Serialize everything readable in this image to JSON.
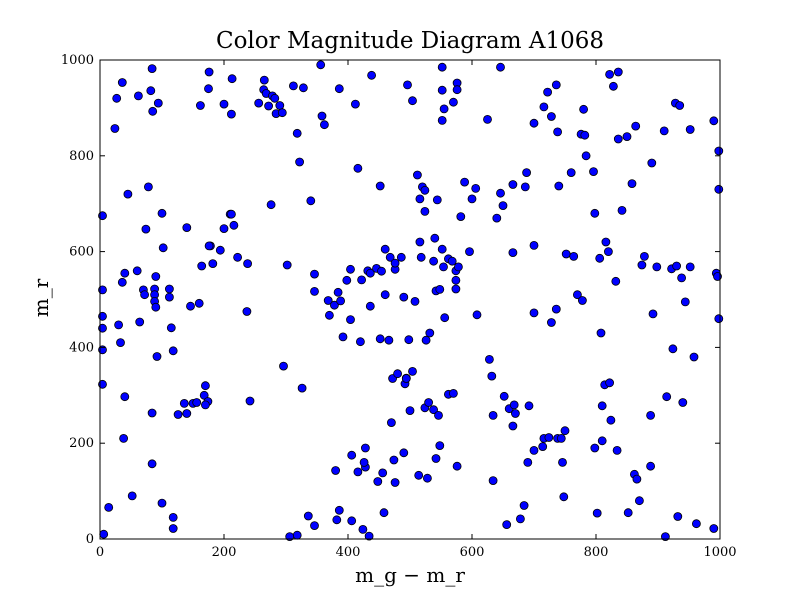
{
  "chart_data": {
    "type": "scatter",
    "title": "Color Magnitude Diagram A1068",
    "xlabel": "m_g − m_r",
    "ylabel": "m_r",
    "xlim": [
      0,
      1000
    ],
    "ylim": [
      0,
      1000
    ],
    "xticks": [
      "0",
      "200",
      "400",
      "600",
      "800",
      "1000"
    ],
    "yticks": [
      "0",
      "200",
      "400",
      "600",
      "800",
      "1000"
    ],
    "marker_color": "#0000ff",
    "grid": false,
    "points": [
      [
        27,
        920
      ],
      [
        36,
        953
      ],
      [
        62,
        925
      ],
      [
        84,
        982
      ],
      [
        82,
        936
      ],
      [
        94,
        910
      ],
      [
        85,
        893
      ],
      [
        24,
        857
      ],
      [
        78,
        735
      ],
      [
        45,
        720
      ],
      [
        4,
        675
      ],
      [
        100,
        680
      ],
      [
        74,
        647
      ],
      [
        102,
        608
      ],
      [
        60,
        560
      ],
      [
        40,
        555
      ],
      [
        36,
        536
      ],
      [
        70,
        520
      ],
      [
        72,
        510
      ],
      [
        90,
        548
      ],
      [
        88,
        522
      ],
      [
        88,
        510
      ],
      [
        88,
        496
      ],
      [
        112,
        522
      ],
      [
        112,
        505
      ],
      [
        90,
        484
      ],
      [
        64,
        453
      ],
      [
        4,
        520
      ],
      [
        4,
        465
      ],
      [
        4,
        440
      ],
      [
        4,
        395
      ],
      [
        30,
        447
      ],
      [
        33,
        410
      ],
      [
        92,
        381
      ],
      [
        118,
        393
      ],
      [
        115,
        441
      ],
      [
        4,
        323
      ],
      [
        40,
        297
      ],
      [
        38,
        210
      ],
      [
        84,
        263
      ],
      [
        84,
        157
      ],
      [
        52,
        90
      ],
      [
        100,
        75
      ],
      [
        118,
        45
      ],
      [
        118,
        22
      ],
      [
        14,
        66
      ],
      [
        6,
        10
      ],
      [
        176,
        975
      ],
      [
        175,
        940
      ],
      [
        213,
        961
      ],
      [
        200,
        908
      ],
      [
        212,
        887
      ],
      [
        256,
        910
      ],
      [
        264,
        938
      ],
      [
        265,
        958
      ],
      [
        268,
        930
      ],
      [
        272,
        904
      ],
      [
        278,
        925
      ],
      [
        282,
        920
      ],
      [
        284,
        888
      ],
      [
        290,
        905
      ],
      [
        294,
        890
      ],
      [
        276,
        698
      ],
      [
        312,
        946
      ],
      [
        318,
        847
      ],
      [
        322,
        787
      ],
      [
        328,
        942
      ],
      [
        356,
        990
      ],
      [
        358,
        883
      ],
      [
        362,
        865
      ],
      [
        386,
        940
      ],
      [
        412,
        908
      ],
      [
        438,
        968
      ],
      [
        552,
        985
      ],
      [
        504,
        915
      ],
      [
        496,
        948
      ],
      [
        552,
        937
      ],
      [
        555,
        898
      ],
      [
        570,
        912
      ],
      [
        576,
        952
      ],
      [
        576,
        938
      ],
      [
        552,
        874
      ],
      [
        625,
        876
      ],
      [
        646,
        985
      ],
      [
        700,
        868
      ],
      [
        716,
        902
      ],
      [
        722,
        933
      ],
      [
        736,
        948
      ],
      [
        728,
        882
      ],
      [
        738,
        850
      ],
      [
        776,
        845
      ],
      [
        780,
        897
      ],
      [
        782,
        843
      ],
      [
        784,
        800
      ],
      [
        796,
        767
      ],
      [
        822,
        970
      ],
      [
        836,
        975
      ],
      [
        828,
        945
      ],
      [
        836,
        835
      ],
      [
        850,
        840
      ],
      [
        864,
        862
      ],
      [
        890,
        785
      ],
      [
        910,
        852
      ],
      [
        928,
        910
      ],
      [
        935,
        905
      ],
      [
        952,
        855
      ],
      [
        990,
        873
      ],
      [
        998,
        810
      ],
      [
        998,
        730
      ],
      [
        162,
        905
      ],
      [
        140,
        650
      ],
      [
        164,
        570
      ],
      [
        178,
        612
      ],
      [
        182,
        575
      ],
      [
        194,
        603
      ],
      [
        200,
        648
      ],
      [
        210,
        678
      ],
      [
        216,
        655
      ],
      [
        222,
        588
      ],
      [
        238,
        575
      ],
      [
        237,
        475
      ],
      [
        212,
        678
      ],
      [
        176,
        612
      ],
      [
        146,
        486
      ],
      [
        160,
        492
      ],
      [
        126,
        260
      ],
      [
        136,
        283
      ],
      [
        140,
        262
      ],
      [
        150,
        283
      ],
      [
        156,
        285
      ],
      [
        168,
        300
      ],
      [
        170,
        320
      ],
      [
        174,
        287
      ],
      [
        170,
        280
      ],
      [
        242,
        288
      ],
      [
        296,
        361
      ],
      [
        302,
        572
      ],
      [
        326,
        315
      ],
      [
        340,
        706
      ],
      [
        346,
        553
      ],
      [
        346,
        517
      ],
      [
        368,
        498
      ],
      [
        370,
        467
      ],
      [
        378,
        488
      ],
      [
        384,
        515
      ],
      [
        388,
        497
      ],
      [
        392,
        422
      ],
      [
        398,
        540
      ],
      [
        404,
        563
      ],
      [
        404,
        458
      ],
      [
        416,
        774
      ],
      [
        420,
        412
      ],
      [
        422,
        541
      ],
      [
        432,
        560
      ],
      [
        436,
        555
      ],
      [
        436,
        486
      ],
      [
        446,
        565
      ],
      [
        452,
        737
      ],
      [
        452,
        418
      ],
      [
        454,
        559
      ],
      [
        460,
        510
      ],
      [
        460,
        605
      ],
      [
        466,
        415
      ],
      [
        468,
        588
      ],
      [
        472,
        335
      ],
      [
        476,
        563
      ],
      [
        476,
        576
      ],
      [
        480,
        345
      ],
      [
        486,
        588
      ],
      [
        490,
        505
      ],
      [
        492,
        324
      ],
      [
        494,
        336
      ],
      [
        494,
        335
      ],
      [
        498,
        416
      ],
      [
        504,
        350
      ],
      [
        508,
        496
      ],
      [
        512,
        760
      ],
      [
        516,
        710
      ],
      [
        516,
        620
      ],
      [
        518,
        588
      ],
      [
        520,
        735
      ],
      [
        524,
        728
      ],
      [
        524,
        684
      ],
      [
        526,
        415
      ],
      [
        532,
        430
      ],
      [
        538,
        580
      ],
      [
        540,
        628
      ],
      [
        542,
        518
      ],
      [
        544,
        708
      ],
      [
        548,
        521
      ],
      [
        552,
        605
      ],
      [
        554,
        568
      ],
      [
        556,
        462
      ],
      [
        562,
        585
      ],
      [
        568,
        580
      ],
      [
        574,
        560
      ],
      [
        574,
        540
      ],
      [
        574,
        522
      ],
      [
        578,
        568
      ],
      [
        582,
        673
      ],
      [
        588,
        745
      ],
      [
        596,
        600
      ],
      [
        600,
        710
      ],
      [
        606,
        732
      ],
      [
        608,
        468
      ],
      [
        628,
        375
      ],
      [
        632,
        340
      ],
      [
        634,
        258
      ],
      [
        640,
        670
      ],
      [
        646,
        722
      ],
      [
        650,
        696
      ],
      [
        652,
        298
      ],
      [
        656,
        30
      ],
      [
        660,
        272
      ],
      [
        666,
        740
      ],
      [
        666,
        598
      ],
      [
        666,
        236
      ],
      [
        668,
        280
      ],
      [
        670,
        262
      ],
      [
        678,
        42
      ],
      [
        684,
        70
      ],
      [
        686,
        735
      ],
      [
        688,
        765
      ],
      [
        690,
        160
      ],
      [
        692,
        278
      ],
      [
        700,
        472
      ],
      [
        700,
        613
      ],
      [
        714,
        193
      ],
      [
        716,
        210
      ],
      [
        724,
        212
      ],
      [
        728,
        452
      ],
      [
        736,
        480
      ],
      [
        738,
        210
      ],
      [
        740,
        737
      ],
      [
        744,
        210
      ],
      [
        746,
        160
      ],
      [
        748,
        88
      ],
      [
        750,
        226
      ],
      [
        752,
        595
      ],
      [
        760,
        765
      ],
      [
        764,
        590
      ],
      [
        770,
        510
      ],
      [
        778,
        498
      ],
      [
        798,
        190
      ],
      [
        798,
        680
      ],
      [
        802,
        54
      ],
      [
        806,
        586
      ],
      [
        808,
        430
      ],
      [
        810,
        278
      ],
      [
        814,
        322
      ],
      [
        816,
        620
      ],
      [
        820,
        600
      ],
      [
        822,
        326
      ],
      [
        824,
        248
      ],
      [
        832,
        538
      ],
      [
        834,
        185
      ],
      [
        842,
        686
      ],
      [
        852,
        55
      ],
      [
        858,
        742
      ],
      [
        862,
        135
      ],
      [
        866,
        125
      ],
      [
        870,
        80
      ],
      [
        874,
        572
      ],
      [
        878,
        590
      ],
      [
        888,
        258
      ],
      [
        888,
        152
      ],
      [
        892,
        470
      ],
      [
        898,
        568
      ],
      [
        912,
        5
      ],
      [
        914,
        297
      ],
      [
        922,
        564
      ],
      [
        924,
        397
      ],
      [
        930,
        570
      ],
      [
        932,
        47
      ],
      [
        938,
        545
      ],
      [
        940,
        285
      ],
      [
        944,
        495
      ],
      [
        952,
        568
      ],
      [
        958,
        380
      ],
      [
        962,
        32
      ],
      [
        990,
        22
      ],
      [
        994,
        555
      ],
      [
        996,
        548
      ],
      [
        998,
        460
      ],
      [
        810,
        205
      ],
      [
        700,
        185
      ],
      [
        634,
        122
      ],
      [
        476,
        118
      ],
      [
        514,
        133
      ],
      [
        528,
        127
      ],
      [
        542,
        168
      ],
      [
        548,
        195
      ],
      [
        524,
        274
      ],
      [
        530,
        285
      ],
      [
        538,
        270
      ],
      [
        546,
        258
      ],
      [
        562,
        302
      ],
      [
        570,
        304
      ],
      [
        576,
        152
      ],
      [
        500,
        268
      ],
      [
        490,
        180
      ],
      [
        474,
        165
      ],
      [
        456,
        138
      ],
      [
        448,
        120
      ],
      [
        428,
        150
      ],
      [
        426,
        160
      ],
      [
        416,
        140
      ],
      [
        406,
        175
      ],
      [
        428,
        190
      ],
      [
        458,
        55
      ],
      [
        470,
        243
      ],
      [
        380,
        143
      ],
      [
        382,
        40
      ],
      [
        386,
        60
      ],
      [
        406,
        38
      ],
      [
        424,
        20
      ],
      [
        434,
        6
      ],
      [
        346,
        28
      ],
      [
        336,
        48
      ],
      [
        318,
        8
      ],
      [
        306,
        5
      ]
    ]
  }
}
